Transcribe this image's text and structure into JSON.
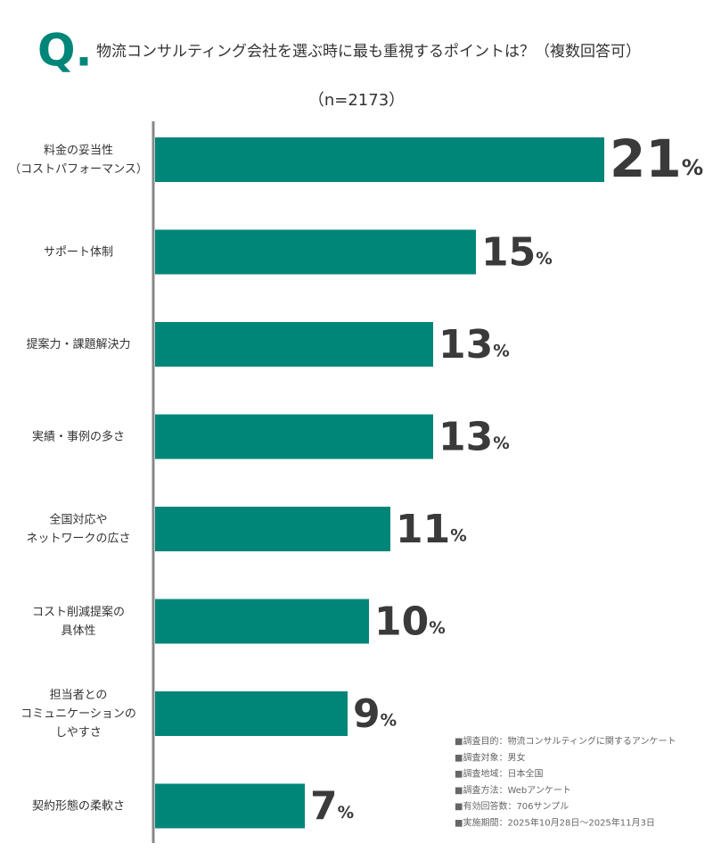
{
  "chart_data": {
    "type": "bar",
    "orientation": "horizontal",
    "question_mark": "Q.",
    "title": "物流コンサルティング会社を選ぶ時に最も重視するポイントは？（複数回答可）",
    "subtitle": "（n=2173）",
    "categories": [
      "料金の妥当性\n（コストパフォーマンス）",
      "サポート体制",
      "提案力・課題解決力",
      "実績・事例の多さ",
      "全国対応や\nネットワークの広さ",
      "コスト削減提案の\n具体性",
      "担当者との\nコミュニケーションの\nしやすさ",
      "契約形態の柔軟さ"
    ],
    "values": [
      21,
      15,
      13,
      13,
      11,
      10,
      9,
      7
    ],
    "value_labels": [
      "21%",
      "15%",
      "13%",
      "13%",
      "11%",
      "10%",
      "9%",
      "7%"
    ],
    "color": "#008678",
    "notes": [
      "■調査目的：物流コンサルティングに関するアンケート",
      "■調査対象：男女",
      "■調査地域：日本全国",
      "■調査方法：Webアンケート",
      "■有効回答数：706サンプル",
      "■実施期間：2025年10月28日～2025年11月3日"
    ]
  }
}
